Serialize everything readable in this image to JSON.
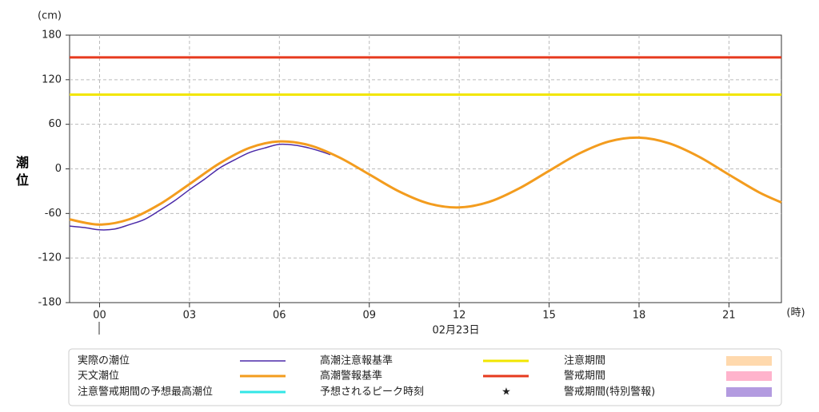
{
  "chart_data": {
    "type": "line",
    "y_unit": "(cm)",
    "x_unit": "(時)",
    "y_label": "潮位",
    "date_label": "02月23日",
    "xlim": [
      -1,
      22.75
    ],
    "ylim": [
      -180,
      180
    ],
    "xticks": [
      {
        "value": 0,
        "label": "00"
      },
      {
        "value": 3,
        "label": "03"
      },
      {
        "value": 6,
        "label": "06"
      },
      {
        "value": 9,
        "label": "09"
      },
      {
        "value": 12,
        "label": "12"
      },
      {
        "value": 15,
        "label": "15"
      },
      {
        "value": 18,
        "label": "18"
      },
      {
        "value": 21,
        "label": "21"
      }
    ],
    "yticks": [
      180,
      120,
      60,
      0,
      -60,
      -120,
      -180
    ],
    "grid": true,
    "series": [
      {
        "name": "実際の潮位",
        "color": "#4b2aa8",
        "x": [
          -1,
          -0.5,
          0,
          0.5,
          1,
          1.5,
          2,
          2.5,
          3,
          3.5,
          4,
          4.5,
          5,
          5.5,
          6,
          6.5,
          7,
          7.5,
          7.7
        ],
        "values": [
          -77,
          -79,
          -82,
          -81,
          -75,
          -68,
          -56,
          -43,
          -28,
          -14,
          1,
          12,
          22,
          28,
          33,
          32,
          28,
          22,
          19
        ]
      },
      {
        "name": "天文潮位",
        "color": "#f39c1e",
        "x": [
          -1,
          0,
          1,
          2,
          3,
          4,
          5,
          6,
          7,
          8,
          9,
          10,
          11,
          12,
          13,
          14,
          15,
          16,
          17,
          18,
          19,
          20,
          21,
          22,
          22.75
        ],
        "values": [
          -68,
          -75,
          -67.7,
          -47.8,
          -20.5,
          7.3,
          28.2,
          36.9,
          31.8,
          15.4,
          -7.5,
          -30.5,
          -46.8,
          -51.9,
          -44.4,
          -26.3,
          -2.6,
          20.6,
          36.9,
          42,
          34.4,
          16.3,
          -7.8,
          -31.5,
          -45.2
        ]
      }
    ],
    "reference_lines": [
      {
        "name": "高潮注意報基準",
        "value": 100,
        "color": "#f2e600"
      },
      {
        "name": "高潮警報基準",
        "value": 150,
        "color": "#e63a1e"
      }
    ],
    "peak_legend": [
      {
        "name": "注意警戒期間の予想最高潮位",
        "color": "#33e6e6"
      },
      {
        "name": "予想されるピーク時刻",
        "color": "#1a1adb",
        "symbol": "★"
      }
    ],
    "periods": [
      {
        "name": "注意期間",
        "color": "#ffd9ad"
      },
      {
        "name": "警戒期間",
        "color": "#ffb3cc"
      },
      {
        "name": "警戒期間(特別警報)",
        "color": "#b39be0"
      }
    ]
  }
}
